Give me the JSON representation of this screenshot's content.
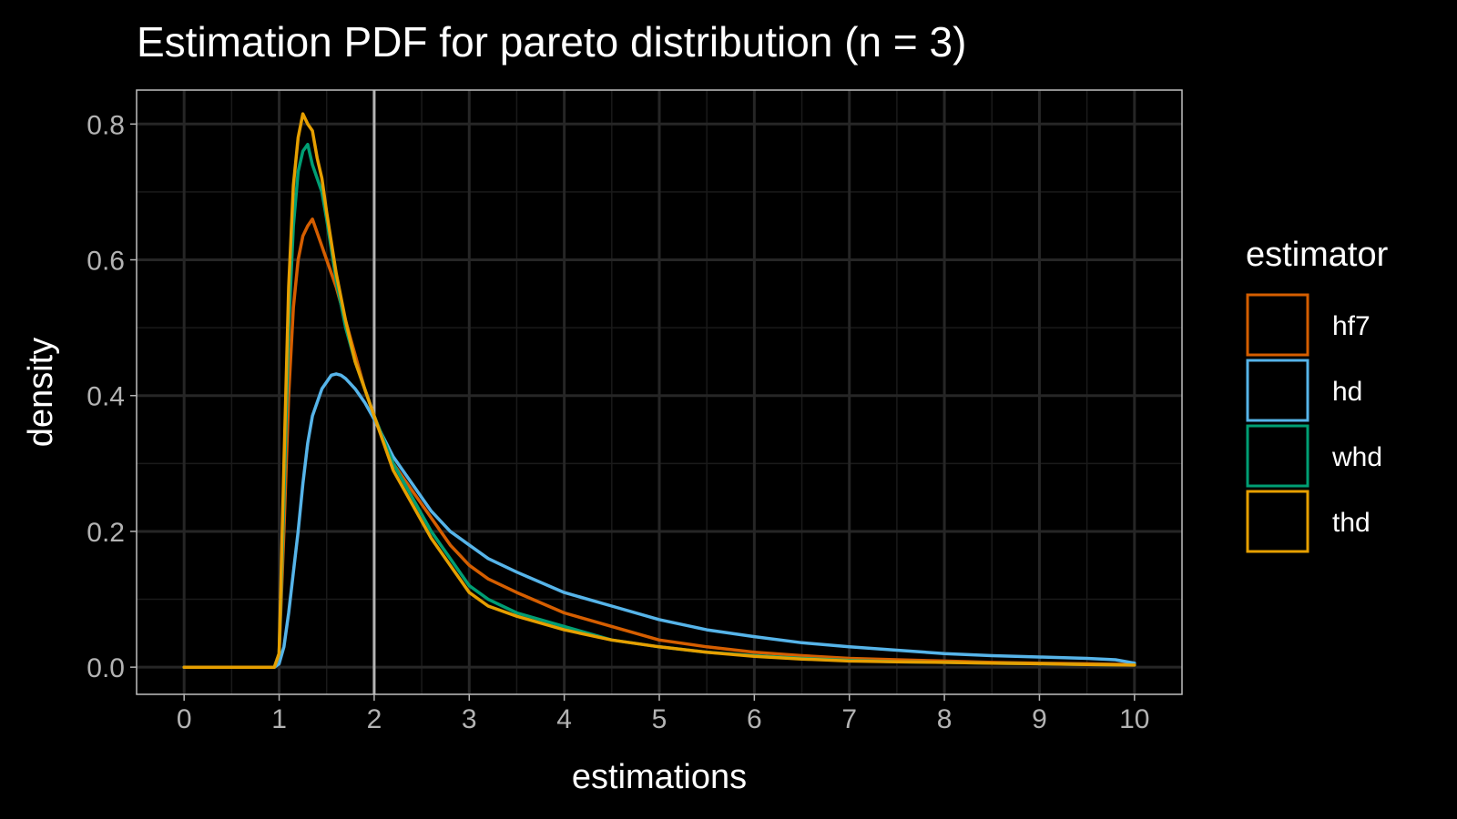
{
  "chart_data": {
    "type": "line",
    "title": "Estimation PDF for pareto distribution (n = 3)",
    "xlabel": "estimations",
    "ylabel": "density",
    "xlim": [
      -0.5,
      10.5
    ],
    "ylim": [
      -0.04,
      0.85
    ],
    "x_ticks": [
      0,
      1,
      2,
      3,
      4,
      5,
      6,
      7,
      8,
      9,
      10
    ],
    "x_tick_labels": [
      "0",
      "1",
      "2",
      "3",
      "4",
      "5",
      "6",
      "7",
      "8",
      "9",
      "10"
    ],
    "y_ticks": [
      0.0,
      0.2,
      0.4,
      0.6,
      0.8
    ],
    "y_tick_labels": [
      "0.0",
      "0.2",
      "0.4",
      "0.6",
      "0.8"
    ],
    "vline_x": 2,
    "grid": true,
    "legend_title": "estimator",
    "legend_position": "right",
    "series": [
      {
        "name": "hf7",
        "color": "#D55E00",
        "x": [
          0,
          0.95,
          1.0,
          1.05,
          1.1,
          1.15,
          1.2,
          1.25,
          1.3,
          1.35,
          1.4,
          1.45,
          1.5,
          1.6,
          1.7,
          1.8,
          1.9,
          2.0,
          2.2,
          2.4,
          2.6,
          2.8,
          3.0,
          3.2,
          3.5,
          4.0,
          4.5,
          5.0,
          5.5,
          6.0,
          6.5,
          7.0,
          7.5,
          8.0,
          8.5,
          9.0,
          9.5,
          10.0
        ],
        "y": [
          0,
          0,
          0.02,
          0.2,
          0.4,
          0.53,
          0.6,
          0.635,
          0.65,
          0.66,
          0.64,
          0.62,
          0.6,
          0.56,
          0.51,
          0.46,
          0.41,
          0.37,
          0.3,
          0.26,
          0.22,
          0.18,
          0.15,
          0.13,
          0.11,
          0.08,
          0.06,
          0.04,
          0.03,
          0.022,
          0.017,
          0.013,
          0.011,
          0.009,
          0.007,
          0.006,
          0.005,
          0.004
        ]
      },
      {
        "name": "hd",
        "color": "#56B4E9",
        "x": [
          0,
          0.95,
          1.0,
          1.05,
          1.1,
          1.15,
          1.2,
          1.25,
          1.3,
          1.35,
          1.4,
          1.45,
          1.5,
          1.55,
          1.6,
          1.65,
          1.7,
          1.8,
          1.9,
          2.0,
          2.2,
          2.4,
          2.6,
          2.8,
          3.0,
          3.2,
          3.5,
          4.0,
          4.5,
          5.0,
          5.5,
          6.0,
          6.5,
          7.0,
          7.5,
          8.0,
          8.5,
          9.0,
          9.5,
          9.8,
          10.0
        ],
        "y": [
          0,
          0,
          0.005,
          0.03,
          0.08,
          0.14,
          0.2,
          0.27,
          0.33,
          0.37,
          0.39,
          0.41,
          0.42,
          0.43,
          0.432,
          0.43,
          0.425,
          0.41,
          0.39,
          0.365,
          0.31,
          0.27,
          0.23,
          0.2,
          0.18,
          0.16,
          0.14,
          0.11,
          0.09,
          0.07,
          0.055,
          0.045,
          0.036,
          0.03,
          0.025,
          0.02,
          0.017,
          0.015,
          0.013,
          0.011,
          0.006
        ]
      },
      {
        "name": "whd",
        "color": "#009E73",
        "x": [
          0,
          0.95,
          1.0,
          1.05,
          1.1,
          1.15,
          1.2,
          1.25,
          1.3,
          1.35,
          1.4,
          1.45,
          1.5,
          1.6,
          1.7,
          1.8,
          1.9,
          2.0,
          2.2,
          2.4,
          2.6,
          2.8,
          3.0,
          3.2,
          3.5,
          4.0,
          4.5,
          5.0,
          5.5,
          6.0,
          6.5,
          7.0,
          7.5,
          8.0,
          8.5,
          9.0,
          9.5,
          10.0
        ],
        "y": [
          0,
          0,
          0.02,
          0.25,
          0.5,
          0.65,
          0.73,
          0.76,
          0.77,
          0.74,
          0.72,
          0.7,
          0.66,
          0.57,
          0.5,
          0.45,
          0.41,
          0.37,
          0.3,
          0.25,
          0.2,
          0.16,
          0.12,
          0.1,
          0.08,
          0.06,
          0.04,
          0.03,
          0.022,
          0.017,
          0.013,
          0.01,
          0.008,
          0.007,
          0.006,
          0.005,
          0.004,
          0.003
        ]
      },
      {
        "name": "thd",
        "color": "#E69F00",
        "x": [
          0,
          0.95,
          1.0,
          1.05,
          1.1,
          1.15,
          1.2,
          1.25,
          1.3,
          1.35,
          1.4,
          1.45,
          1.5,
          1.6,
          1.7,
          1.8,
          1.9,
          2.0,
          2.2,
          2.4,
          2.6,
          2.8,
          3.0,
          3.2,
          3.5,
          4.0,
          4.5,
          5.0,
          5.5,
          6.0,
          6.5,
          7.0,
          7.5,
          8.0,
          8.5,
          9.0,
          9.5,
          10.0
        ],
        "y": [
          0,
          0,
          0.02,
          0.3,
          0.56,
          0.71,
          0.78,
          0.815,
          0.8,
          0.79,
          0.75,
          0.72,
          0.67,
          0.58,
          0.51,
          0.45,
          0.41,
          0.37,
          0.29,
          0.24,
          0.19,
          0.15,
          0.11,
          0.09,
          0.075,
          0.055,
          0.04,
          0.03,
          0.022,
          0.016,
          0.012,
          0.009,
          0.008,
          0.007,
          0.006,
          0.005,
          0.004,
          0.003
        ]
      }
    ]
  }
}
